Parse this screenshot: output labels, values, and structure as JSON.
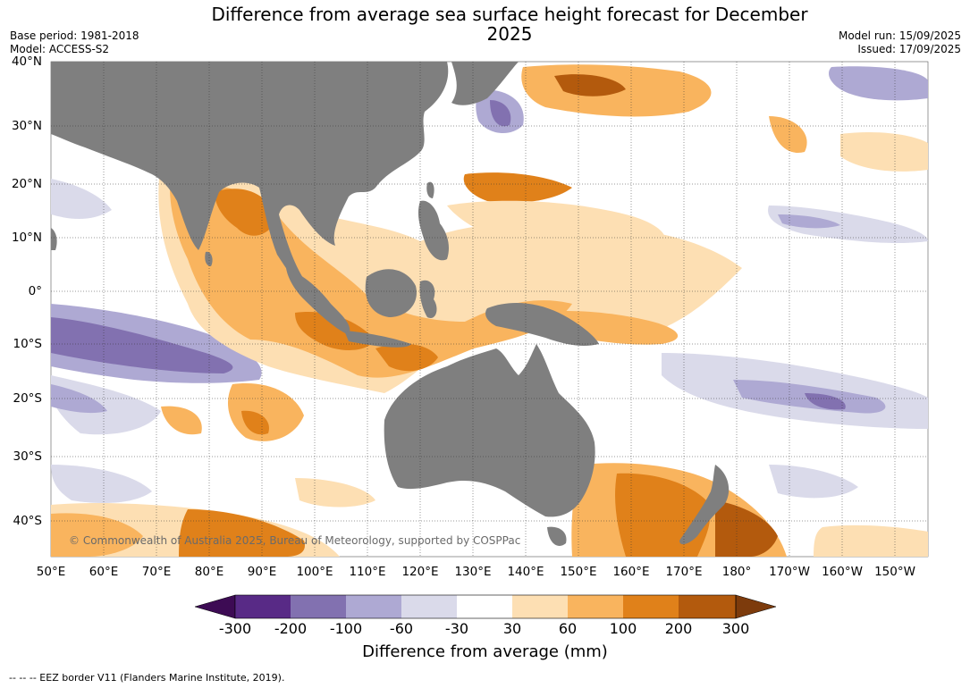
{
  "title": "Difference from average sea surface height forecast for December 2025",
  "meta_left": [
    "Base period: 1981-2018",
    "Model: ACCESS-S2"
  ],
  "meta_right": [
    "Model run: 15/09/2025",
    "Issued: 17/09/2025"
  ],
  "lat_labels": [
    "40°N",
    "30°N",
    "20°N",
    "10°N",
    "0°",
    "10°S",
    "20°S",
    "30°S",
    "40°S"
  ],
  "lon_labels": [
    "50°E",
    "60°E",
    "70°E",
    "80°E",
    "90°E",
    "100°E",
    "110°E",
    "120°E",
    "130°E",
    "140°E",
    "150°E",
    "160°E",
    "170°E",
    "180°",
    "170°W",
    "160°W",
    "150°W"
  ],
  "colorbar": {
    "title": "Difference from average (mm)",
    "tick_labels": [
      "-300",
      "-200",
      "-100",
      "-60",
      "-30",
      "30",
      "60",
      "100",
      "200",
      "300"
    ],
    "colors": [
      "#3d0b54",
      "#582a86",
      "#8271b0",
      "#aea9d3",
      "#dadaea",
      "#ffffff",
      "#fddfb3",
      "#f9b45e",
      "#e0811a",
      "#b35a0d",
      "#7d3b0c"
    ]
  },
  "colors": {
    "land": "#7f7f7f",
    "ocean_neutral": "#ffffff"
  },
  "copyright": "© Commonwealth of Australia 2025, Bureau of Meteorology, supported by COSPPac",
  "footnote": "--  --  -- EEZ border V11 (Flanders Marine Institute, 2019)."
}
